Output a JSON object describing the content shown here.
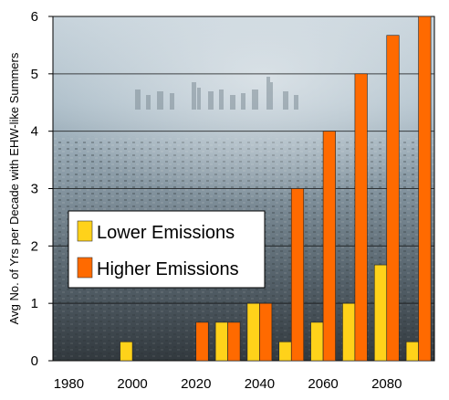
{
  "chart_data": {
    "type": "bar",
    "ylabel": "Avg No. of Yrs per Decade with EHW-like Summers",
    "xlabel": "",
    "ylim": [
      0,
      6
    ],
    "xlim": [
      1975,
      2095
    ],
    "y_ticks": [
      "0",
      "1",
      "2",
      "3",
      "4",
      "5",
      "6"
    ],
    "x_ticks": [
      "1980",
      "2000",
      "2020",
      "2040",
      "2060",
      "2080"
    ],
    "x_tick_values": [
      1980,
      2000,
      2020,
      2040,
      2060,
      2080
    ],
    "grid": true,
    "legend_position": "center-left",
    "series": [
      {
        "name": "Lower Emissions",
        "color": "#ffd21a",
        "points": [
          {
            "x": 2000,
            "y": 0.33
          },
          {
            "x": 2030,
            "y": 0.67
          },
          {
            "x": 2040,
            "y": 1.0
          },
          {
            "x": 2050,
            "y": 0.33
          },
          {
            "x": 2060,
            "y": 0.67
          },
          {
            "x": 2070,
            "y": 1.0
          },
          {
            "x": 2080,
            "y": 1.67
          },
          {
            "x": 2090,
            "y": 0.33
          }
        ]
      },
      {
        "name": "Higher Emissions",
        "color": "#ff6a00",
        "points": [
          {
            "x": 2020,
            "y": 0.67
          },
          {
            "x": 2030,
            "y": 0.67
          },
          {
            "x": 2040,
            "y": 1.0
          },
          {
            "x": 2050,
            "y": 3.0
          },
          {
            "x": 2060,
            "y": 4.0
          },
          {
            "x": 2070,
            "y": 5.0
          },
          {
            "x": 2080,
            "y": 5.67
          },
          {
            "x": 2090,
            "y": 6.0
          }
        ]
      }
    ]
  }
}
